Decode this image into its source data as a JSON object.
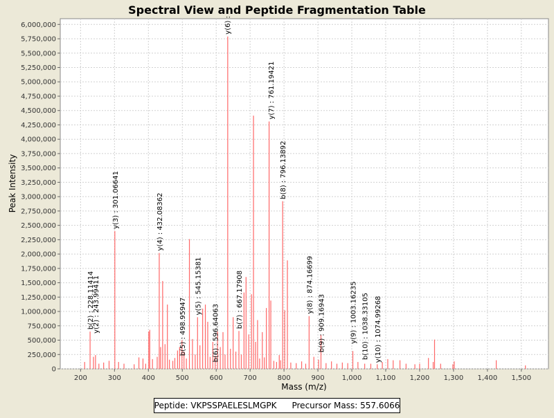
{
  "chart_data": {
    "type": "bar",
    "title": "Spectral View and Peptide Fragmentation Table",
    "xlabel": "Mass (m/z)",
    "ylabel": "Peak Intensity",
    "xlim": [
      140,
      1580
    ],
    "ylim": [
      0,
      6100000
    ],
    "x_ticks": [
      200,
      300,
      400,
      500,
      600,
      700,
      800,
      900,
      1000,
      1100,
      1200,
      1300,
      1400,
      1500
    ],
    "x_tick_labels": [
      "200",
      "300",
      "400",
      "500",
      "600",
      "700",
      "800",
      "900",
      "1,000",
      "1,100",
      "1,200",
      "1,300",
      "1,400",
      "1,500"
    ],
    "y_ticks": [
      0,
      250000,
      500000,
      750000,
      1000000,
      1250000,
      1500000,
      1750000,
      2000000,
      2250000,
      2500000,
      2750000,
      3000000,
      3250000,
      3500000,
      3750000,
      4000000,
      4250000,
      4500000,
      4750000,
      5000000,
      5250000,
      5500000,
      5750000,
      6000000
    ],
    "y_tick_labels": [
      "0",
      "250,000",
      "500,000",
      "750,000",
      "1,000,000",
      "1,250,000",
      "1,500,000",
      "1,750,000",
      "2,000,000",
      "2,250,000",
      "2,500,000",
      "2,750,000",
      "3,000,000",
      "3,250,000",
      "3,500,000",
      "3,750,000",
      "4,000,000",
      "4,250,000",
      "4,500,000",
      "4,750,000",
      "5,000,000",
      "5,250,000",
      "5,500,000",
      "5,750,000",
      "6,000,000"
    ],
    "grid": true,
    "series": [
      {
        "name": "Peaks",
        "color": "#FF6666",
        "mz": [
          212,
          228,
          238,
          244,
          254,
          268,
          284,
          301,
          312,
          328,
          358,
          372,
          384,
          392,
          401,
          404,
          412,
          426,
          432,
          436,
          442,
          449,
          456,
          462,
          472,
          478,
          486,
          492,
          499,
          505,
          512,
          521,
          530,
          538,
          545,
          552,
          560,
          568,
          575,
          582,
          590,
          597,
          604,
          612,
          620,
          626,
          634,
          642,
          650,
          658,
          667,
          674,
          682,
          688,
          696,
          704,
          710,
          716,
          722,
          728,
          736,
          742,
          748,
          756,
          761,
          770,
          778,
          786,
          790,
          796,
          802,
          810,
          820,
          836,
          852,
          864,
          874,
          888,
          902,
          909,
          924,
          940,
          956,
          972,
          988,
          1003,
          1018,
          1038,
          1056,
          1075,
          1090,
          1106,
          1122,
          1142,
          1160,
          1186,
          1200,
          1226,
          1240,
          1244,
          1262,
          1298,
          1302,
          1426,
          1512
        ],
        "intensity": [
          120000,
          650000,
          210000,
          240000,
          90000,
          110000,
          140000,
          2400000,
          120000,
          90000,
          80000,
          200000,
          180000,
          90000,
          650000,
          680000,
          170000,
          210000,
          2020000,
          380000,
          1530000,
          430000,
          1120000,
          160000,
          140000,
          190000,
          320000,
          380000,
          500000,
          300000,
          180000,
          2260000,
          520000,
          250000,
          900000,
          410000,
          1050000,
          1120000,
          820000,
          210000,
          470000,
          230000,
          650000,
          380000,
          640000,
          250000,
          5790000,
          350000,
          900000,
          300000,
          660000,
          250000,
          1330000,
          1600000,
          600000,
          1300000,
          4410000,
          470000,
          850000,
          180000,
          640000,
          200000,
          1060000,
          4310000,
          1190000,
          140000,
          120000,
          240000,
          150000,
          2920000,
          1020000,
          1890000,
          110000,
          100000,
          130000,
          90000,
          920000,
          210000,
          160000,
          590000,
          100000,
          130000,
          90000,
          110000,
          100000,
          310000,
          120000,
          90000,
          90000,
          80000,
          120000,
          170000,
          150000,
          150000,
          90000,
          80000,
          90000,
          190000,
          120000,
          510000,
          90000,
          80000,
          130000,
          150000,
          60000
        ]
      }
    ],
    "annotations": [
      {
        "text": "b(2) : 228.11414",
        "mz": 228,
        "intensity": 650000
      },
      {
        "text": "y(2) : 243.99411",
        "mz": 244,
        "intensity": 580000
      },
      {
        "text": "y(3) : 301.06641",
        "mz": 301,
        "intensity": 2400000
      },
      {
        "text": "y(4) : 432.08362",
        "mz": 432,
        "intensity": 2020000
      },
      {
        "text": "b(5) : 498.95947",
        "mz": 499,
        "intensity": 190000
      },
      {
        "text": "y(5) : 545.15381",
        "mz": 545,
        "intensity": 900000
      },
      {
        "text": "b(6) : 596.64063",
        "mz": 597,
        "intensity": 80000
      },
      {
        "text": "y(6) :",
        "mz": 632,
        "intensity": 5790000
      },
      {
        "text": "b(7) : 667.17908",
        "mz": 667,
        "intensity": 660000
      },
      {
        "text": "y(7) : 761.19421",
        "mz": 761,
        "intensity": 4310000
      },
      {
        "text": "b(8) : 796.13892",
        "mz": 796,
        "intensity": 2920000
      },
      {
        "text": "y(8) : 874.16699",
        "mz": 874,
        "intensity": 920000
      },
      {
        "text": "b(9) : 909.16943",
        "mz": 909,
        "intensity": 250000
      },
      {
        "text": "y(9) : 1003.16235",
        "mz": 1003,
        "intensity": 400000
      },
      {
        "text": "b(10) : 1038.33105",
        "mz": 1038,
        "intensity": 120000
      },
      {
        "text": "y(10) : 1074.99268",
        "mz": 1075,
        "intensity": 70000
      }
    ]
  },
  "legend": {
    "peptide": "Peptide: VKPSSPAELESLMGPK",
    "precursor": "Precursor Mass: 557.6066"
  },
  "colors": {
    "background": "#ECE9D8",
    "plot_background": "#FFFFFF",
    "peak": "#FF6666",
    "grid": "#D0D0D0"
  }
}
